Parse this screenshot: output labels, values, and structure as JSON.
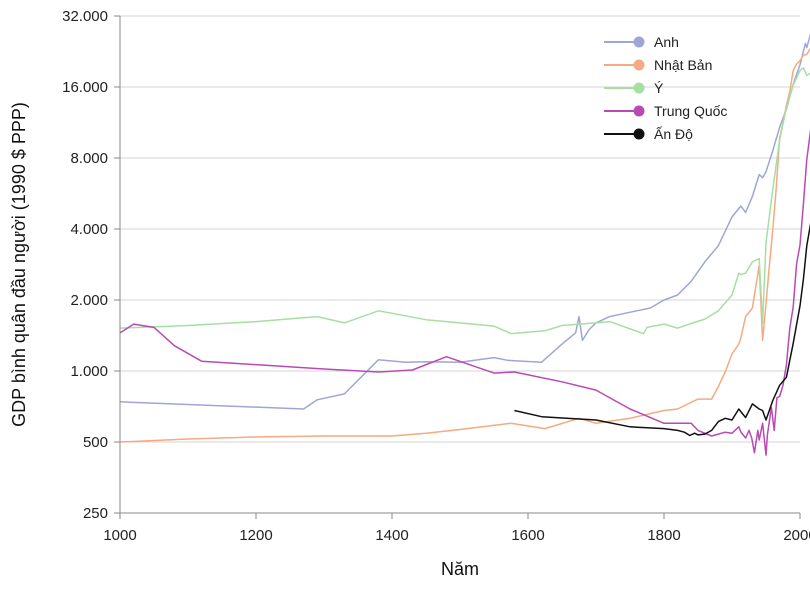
{
  "chart_data": {
    "type": "line",
    "title": "",
    "xlabel": "Năm",
    "ylabel": "GDP bình quân đầu người (1990 $ PPP)",
    "xlim": [
      1000,
      2000
    ],
    "ylim": [
      250,
      32000
    ],
    "y_scale": "log2",
    "x_ticks": [
      1000,
      1200,
      1400,
      1600,
      1800,
      2000
    ],
    "x_tick_labels": [
      "1000",
      "1200",
      "1400",
      "1600",
      "1800",
      "2000"
    ],
    "y_ticks": [
      250,
      500,
      1000,
      2000,
      4000,
      8000,
      16000,
      32000
    ],
    "y_tick_labels": [
      "250",
      "500",
      "1.000",
      "2.000",
      "4.000",
      "8.000",
      "16.000",
      "32.000"
    ],
    "grid": "horizontal",
    "legend_position": "top-right",
    "series": [
      {
        "name": "Anh",
        "color": "#9fa6d6",
        "points": [
          [
            1000,
            740
          ],
          [
            1270,
            690
          ],
          [
            1290,
            755
          ],
          [
            1330,
            800
          ],
          [
            1380,
            1115
          ],
          [
            1420,
            1090
          ],
          [
            1450,
            1095
          ],
          [
            1500,
            1090
          ],
          [
            1550,
            1140
          ],
          [
            1570,
            1110
          ],
          [
            1620,
            1090
          ],
          [
            1650,
            1300
          ],
          [
            1670,
            1450
          ],
          [
            1675,
            1700
          ],
          [
            1680,
            1350
          ],
          [
            1690,
            1500
          ],
          [
            1700,
            1600
          ],
          [
            1720,
            1700
          ],
          [
            1740,
            1750
          ],
          [
            1760,
            1800
          ],
          [
            1780,
            1850
          ],
          [
            1800,
            2000
          ],
          [
            1820,
            2100
          ],
          [
            1840,
            2400
          ],
          [
            1860,
            2900
          ],
          [
            1880,
            3400
          ],
          [
            1900,
            4500
          ],
          [
            1913,
            5000
          ],
          [
            1920,
            4700
          ],
          [
            1930,
            5500
          ],
          [
            1940,
            6800
          ],
          [
            1945,
            6600
          ],
          [
            1950,
            7000
          ],
          [
            1960,
            8600
          ],
          [
            1970,
            10800
          ],
          [
            1980,
            12900
          ],
          [
            1990,
            16400
          ],
          [
            2000,
            19900
          ],
          [
            2008,
            24500
          ],
          [
            2010,
            23500
          ],
          [
            2018,
            28500
          ]
        ]
      },
      {
        "name": "Nhật Bản",
        "color": "#f4aa82",
        "points": [
          [
            1000,
            500
          ],
          [
            1100,
            515
          ],
          [
            1200,
            525
          ],
          [
            1300,
            530
          ],
          [
            1400,
            530
          ],
          [
            1450,
            545
          ],
          [
            1500,
            565
          ],
          [
            1575,
            600
          ],
          [
            1625,
            570
          ],
          [
            1675,
            630
          ],
          [
            1700,
            600
          ],
          [
            1750,
            630
          ],
          [
            1800,
            680
          ],
          [
            1820,
            690
          ],
          [
            1850,
            760
          ],
          [
            1870,
            760
          ],
          [
            1880,
            860
          ],
          [
            1890,
            990
          ],
          [
            1900,
            1180
          ],
          [
            1910,
            1300
          ],
          [
            1913,
            1380
          ],
          [
            1920,
            1700
          ],
          [
            1930,
            1850
          ],
          [
            1940,
            2800
          ],
          [
            1945,
            1350
          ],
          [
            1950,
            1920
          ],
          [
            1955,
            2800
          ],
          [
            1960,
            3990
          ],
          [
            1965,
            5930
          ],
          [
            1970,
            9700
          ],
          [
            1975,
            11300
          ],
          [
            1980,
            13400
          ],
          [
            1985,
            15300
          ],
          [
            1990,
            18800
          ],
          [
            1995,
            20000
          ],
          [
            2000,
            20700
          ],
          [
            2005,
            21800
          ],
          [
            2010,
            22000
          ],
          [
            2018,
            24000
          ]
        ]
      },
      {
        "name": "Ý",
        "color": "#a6dfa2",
        "points": [
          [
            1000,
            1520
          ],
          [
            1100,
            1560
          ],
          [
            1200,
            1620
          ],
          [
            1290,
            1700
          ],
          [
            1330,
            1600
          ],
          [
            1380,
            1800
          ],
          [
            1450,
            1650
          ],
          [
            1500,
            1600
          ],
          [
            1550,
            1550
          ],
          [
            1575,
            1440
          ],
          [
            1625,
            1480
          ],
          [
            1650,
            1560
          ],
          [
            1700,
            1600
          ],
          [
            1720,
            1620
          ],
          [
            1770,
            1440
          ],
          [
            1775,
            1530
          ],
          [
            1800,
            1580
          ],
          [
            1820,
            1520
          ],
          [
            1840,
            1590
          ],
          [
            1860,
            1660
          ],
          [
            1880,
            1800
          ],
          [
            1900,
            2100
          ],
          [
            1910,
            2600
          ],
          [
            1913,
            2560
          ],
          [
            1920,
            2600
          ],
          [
            1930,
            2900
          ],
          [
            1940,
            3000
          ],
          [
            1945,
            1600
          ],
          [
            1950,
            3500
          ],
          [
            1960,
            5900
          ],
          [
            1970,
            9500
          ],
          [
            1980,
            13100
          ],
          [
            1990,
            16300
          ],
          [
            2000,
            18800
          ],
          [
            2005,
            19300
          ],
          [
            2010,
            17900
          ],
          [
            2018,
            18500
          ]
        ]
      },
      {
        "name": "Trung Quốc",
        "color": "#b94ab4",
        "points": [
          [
            1000,
            1450
          ],
          [
            1020,
            1580
          ],
          [
            1050,
            1530
          ],
          [
            1080,
            1280
          ],
          [
            1120,
            1100
          ],
          [
            1300,
            1020
          ],
          [
            1380,
            990
          ],
          [
            1430,
            1010
          ],
          [
            1480,
            1150
          ],
          [
            1550,
            980
          ],
          [
            1580,
            990
          ],
          [
            1650,
            900
          ],
          [
            1700,
            830
          ],
          [
            1750,
            690
          ],
          [
            1800,
            600
          ],
          [
            1840,
            600
          ],
          [
            1850,
            560
          ],
          [
            1870,
            530
          ],
          [
            1880,
            540
          ],
          [
            1890,
            550
          ],
          [
            1900,
            545
          ],
          [
            1910,
            580
          ],
          [
            1913,
            552
          ],
          [
            1920,
            520
          ],
          [
            1925,
            560
          ],
          [
            1929,
            520
          ],
          [
            1933,
            450
          ],
          [
            1938,
            560
          ],
          [
            1940,
            510
          ],
          [
            1945,
            600
          ],
          [
            1950,
            440
          ],
          [
            1952,
            537
          ],
          [
            1958,
            700
          ],
          [
            1962,
            560
          ],
          [
            1966,
            770
          ],
          [
            1970,
            780
          ],
          [
            1975,
            870
          ],
          [
            1978,
            980
          ],
          [
            1980,
            1060
          ],
          [
            1985,
            1520
          ],
          [
            1990,
            1870
          ],
          [
            1995,
            2850
          ],
          [
            2000,
            3420
          ],
          [
            2005,
            5100
          ],
          [
            2010,
            7900
          ],
          [
            2018,
            11800
          ]
        ]
      },
      {
        "name": "Ấn Độ",
        "color": "#111111",
        "points": [
          [
            1580,
            680
          ],
          [
            1620,
            640
          ],
          [
            1700,
            620
          ],
          [
            1750,
            580
          ],
          [
            1800,
            570
          ],
          [
            1820,
            560
          ],
          [
            1830,
            550
          ],
          [
            1838,
            533
          ],
          [
            1845,
            545
          ],
          [
            1850,
            536
          ],
          [
            1860,
            540
          ],
          [
            1870,
            560
          ],
          [
            1880,
            610
          ],
          [
            1890,
            630
          ],
          [
            1900,
            620
          ],
          [
            1910,
            690
          ],
          [
            1913,
            673
          ],
          [
            1920,
            635
          ],
          [
            1930,
            725
          ],
          [
            1940,
            690
          ],
          [
            1945,
            680
          ],
          [
            1950,
            620
          ],
          [
            1960,
            750
          ],
          [
            1970,
            870
          ],
          [
            1980,
            940
          ],
          [
            1990,
            1310
          ],
          [
            2000,
            1890
          ],
          [
            2005,
            2450
          ],
          [
            2010,
            3400
          ],
          [
            2018,
            4600
          ]
        ]
      }
    ]
  }
}
